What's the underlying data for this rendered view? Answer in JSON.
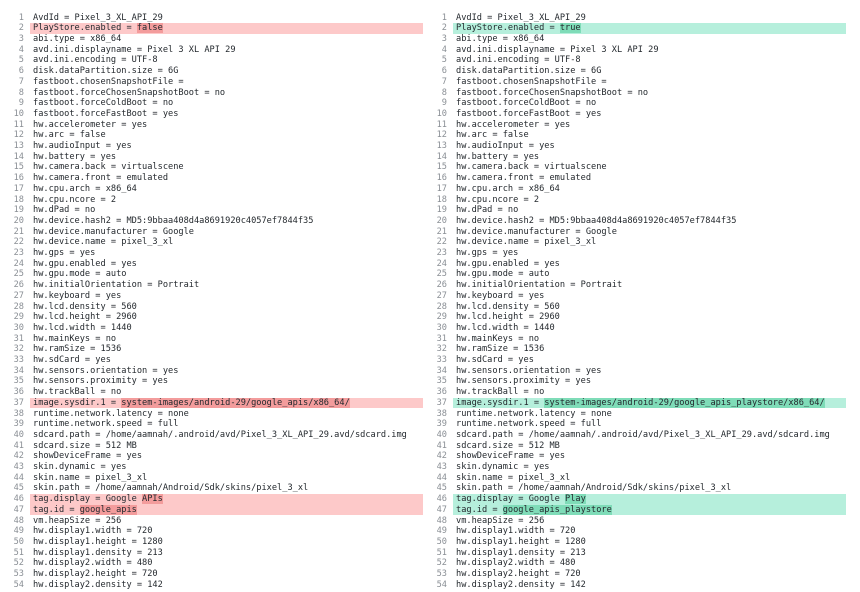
{
  "left": {
    "lines": [
      {
        "n": 1,
        "text": "AvdId = Pixel_3_XL_API_29"
      },
      {
        "n": 2,
        "text": "PlayStore.enabled = ",
        "change": "false"
      },
      {
        "n": 3,
        "text": "abi.type = x86_64"
      },
      {
        "n": 4,
        "text": "avd.ini.displayname = Pixel 3 XL API 29"
      },
      {
        "n": 5,
        "text": "avd.ini.encoding = UTF-8"
      },
      {
        "n": 6,
        "text": "disk.dataPartition.size = 6G"
      },
      {
        "n": 7,
        "text": "fastboot.chosenSnapshotFile ="
      },
      {
        "n": 8,
        "text": "fastboot.forceChosenSnapshotBoot = no"
      },
      {
        "n": 9,
        "text": "fastboot.forceColdBoot = no"
      },
      {
        "n": 10,
        "text": "fastboot.forceFastBoot = yes"
      },
      {
        "n": 11,
        "text": "hw.accelerometer = yes"
      },
      {
        "n": 12,
        "text": "hw.arc = false"
      },
      {
        "n": 13,
        "text": "hw.audioInput = yes"
      },
      {
        "n": 14,
        "text": "hw.battery = yes"
      },
      {
        "n": 15,
        "text": "hw.camera.back = virtualscene"
      },
      {
        "n": 16,
        "text": "hw.camera.front = emulated"
      },
      {
        "n": 17,
        "text": "hw.cpu.arch = x86_64"
      },
      {
        "n": 18,
        "text": "hw.cpu.ncore = 2"
      },
      {
        "n": 19,
        "text": "hw.dPad = no"
      },
      {
        "n": 20,
        "text": "hw.device.hash2 = MD5:9bbaa408d4a8691920c4057ef7844f35"
      },
      {
        "n": 21,
        "text": "hw.device.manufacturer = Google"
      },
      {
        "n": 22,
        "text": "hw.device.name = pixel_3_xl"
      },
      {
        "n": 23,
        "text": "hw.gps = yes"
      },
      {
        "n": 24,
        "text": "hw.gpu.enabled = yes"
      },
      {
        "n": 25,
        "text": "hw.gpu.mode = auto"
      },
      {
        "n": 26,
        "text": "hw.initialOrientation = Portrait"
      },
      {
        "n": 27,
        "text": "hw.keyboard = yes"
      },
      {
        "n": 28,
        "text": "hw.lcd.density = 560"
      },
      {
        "n": 29,
        "text": "hw.lcd.height = 2960"
      },
      {
        "n": 30,
        "text": "hw.lcd.width = 1440"
      },
      {
        "n": 31,
        "text": "hw.mainKeys = no"
      },
      {
        "n": 32,
        "text": "hw.ramSize = 1536"
      },
      {
        "n": 33,
        "text": "hw.sdCard = yes"
      },
      {
        "n": 34,
        "text": "hw.sensors.orientation = yes"
      },
      {
        "n": 35,
        "text": "hw.sensors.proximity = yes"
      },
      {
        "n": 36,
        "text": "hw.trackBall = no"
      },
      {
        "n": 37,
        "text": "image.sysdir.1 = ",
        "change": "system-images/android-29/google_apis/x86_64/"
      },
      {
        "n": 38,
        "text": "runtime.network.latency = none"
      },
      {
        "n": 39,
        "text": "runtime.network.speed = full"
      },
      {
        "n": 40,
        "text": "sdcard.path = /home/aamnah/.android/avd/Pixel_3_XL_API_29.avd/sdcard.img"
      },
      {
        "n": 41,
        "text": "sdcard.size = 512 MB"
      },
      {
        "n": 42,
        "text": "showDeviceFrame = yes"
      },
      {
        "n": 43,
        "text": "skin.dynamic = yes"
      },
      {
        "n": 44,
        "text": "skin.name = pixel_3_xl"
      },
      {
        "n": 45,
        "text": "skin.path = /home/aamnah/Android/Sdk/skins/pixel_3_xl"
      },
      {
        "n": 46,
        "text": "tag.display = Google ",
        "change": "APIs"
      },
      {
        "n": 47,
        "text": "tag.id = ",
        "change": "google_apis"
      },
      {
        "n": 48,
        "text": "vm.heapSize = 256"
      },
      {
        "n": 49,
        "text": "hw.display1.width = 720"
      },
      {
        "n": 50,
        "text": "hw.display1.height = 1280"
      },
      {
        "n": 51,
        "text": "hw.display1.density = 213"
      },
      {
        "n": 52,
        "text": "hw.display2.width = 480"
      },
      {
        "n": 53,
        "text": "hw.display2.height = 720"
      },
      {
        "n": 54,
        "text": "hw.display2.density = 142"
      }
    ]
  },
  "right": {
    "lines": [
      {
        "n": 1,
        "text": "AvdId = Pixel_3_XL_API_29"
      },
      {
        "n": 2,
        "text": "PlayStore.enabled = ",
        "change": "true"
      },
      {
        "n": 3,
        "text": "abi.type = x86_64"
      },
      {
        "n": 4,
        "text": "avd.ini.displayname = Pixel 3 XL API 29"
      },
      {
        "n": 5,
        "text": "avd.ini.encoding = UTF-8"
      },
      {
        "n": 6,
        "text": "disk.dataPartition.size = 6G"
      },
      {
        "n": 7,
        "text": "fastboot.chosenSnapshotFile ="
      },
      {
        "n": 8,
        "text": "fastboot.forceChosenSnapshotBoot = no"
      },
      {
        "n": 9,
        "text": "fastboot.forceColdBoot = no"
      },
      {
        "n": 10,
        "text": "fastboot.forceFastBoot = yes"
      },
      {
        "n": 11,
        "text": "hw.accelerometer = yes"
      },
      {
        "n": 12,
        "text": "hw.arc = false"
      },
      {
        "n": 13,
        "text": "hw.audioInput = yes"
      },
      {
        "n": 14,
        "text": "hw.battery = yes"
      },
      {
        "n": 15,
        "text": "hw.camera.back = virtualscene"
      },
      {
        "n": 16,
        "text": "hw.camera.front = emulated"
      },
      {
        "n": 17,
        "text": "hw.cpu.arch = x86_64"
      },
      {
        "n": 18,
        "text": "hw.cpu.ncore = 2"
      },
      {
        "n": 19,
        "text": "hw.dPad = no"
      },
      {
        "n": 20,
        "text": "hw.device.hash2 = MD5:9bbaa408d4a8691920c4057ef7844f35"
      },
      {
        "n": 21,
        "text": "hw.device.manufacturer = Google"
      },
      {
        "n": 22,
        "text": "hw.device.name = pixel_3_xl"
      },
      {
        "n": 23,
        "text": "hw.gps = yes"
      },
      {
        "n": 24,
        "text": "hw.gpu.enabled = yes"
      },
      {
        "n": 25,
        "text": "hw.gpu.mode = auto"
      },
      {
        "n": 26,
        "text": "hw.initialOrientation = Portrait"
      },
      {
        "n": 27,
        "text": "hw.keyboard = yes"
      },
      {
        "n": 28,
        "text": "hw.lcd.density = 560"
      },
      {
        "n": 29,
        "text": "hw.lcd.height = 2960"
      },
      {
        "n": 30,
        "text": "hw.lcd.width = 1440"
      },
      {
        "n": 31,
        "text": "hw.mainKeys = no"
      },
      {
        "n": 32,
        "text": "hw.ramSize = 1536"
      },
      {
        "n": 33,
        "text": "hw.sdCard = yes"
      },
      {
        "n": 34,
        "text": "hw.sensors.orientation = yes"
      },
      {
        "n": 35,
        "text": "hw.sensors.proximity = yes"
      },
      {
        "n": 36,
        "text": "hw.trackBall = no"
      },
      {
        "n": 37,
        "text": "image.sysdir.1 = ",
        "change": "system-images/android-29/google_apis_playstore/x86_64/"
      },
      {
        "n": 38,
        "text": "runtime.network.latency = none"
      },
      {
        "n": 39,
        "text": "runtime.network.speed = full"
      },
      {
        "n": 40,
        "text": "sdcard.path = /home/aamnah/.android/avd/Pixel_3_XL_API_29.avd/sdcard.img"
      },
      {
        "n": 41,
        "text": "sdcard.size = 512 MB"
      },
      {
        "n": 42,
        "text": "showDeviceFrame = yes"
      },
      {
        "n": 43,
        "text": "skin.dynamic = yes"
      },
      {
        "n": 44,
        "text": "skin.name = pixel_3_xl"
      },
      {
        "n": 45,
        "text": "skin.path = /home/aamnah/Android/Sdk/skins/pixel_3_xl"
      },
      {
        "n": 46,
        "text": "tag.display = Google ",
        "change": "Play"
      },
      {
        "n": 47,
        "text": "tag.id = ",
        "change": "google_apis_playstore"
      },
      {
        "n": 48,
        "text": "vm.heapSize = 256"
      },
      {
        "n": 49,
        "text": "hw.display1.width = 720"
      },
      {
        "n": 50,
        "text": "hw.display1.height = 1280"
      },
      {
        "n": 51,
        "text": "hw.display1.density = 213"
      },
      {
        "n": 52,
        "text": "hw.display2.width = 480"
      },
      {
        "n": 53,
        "text": "hw.display2.height = 720"
      },
      {
        "n": 54,
        "text": "hw.display2.density = 142"
      }
    ]
  }
}
